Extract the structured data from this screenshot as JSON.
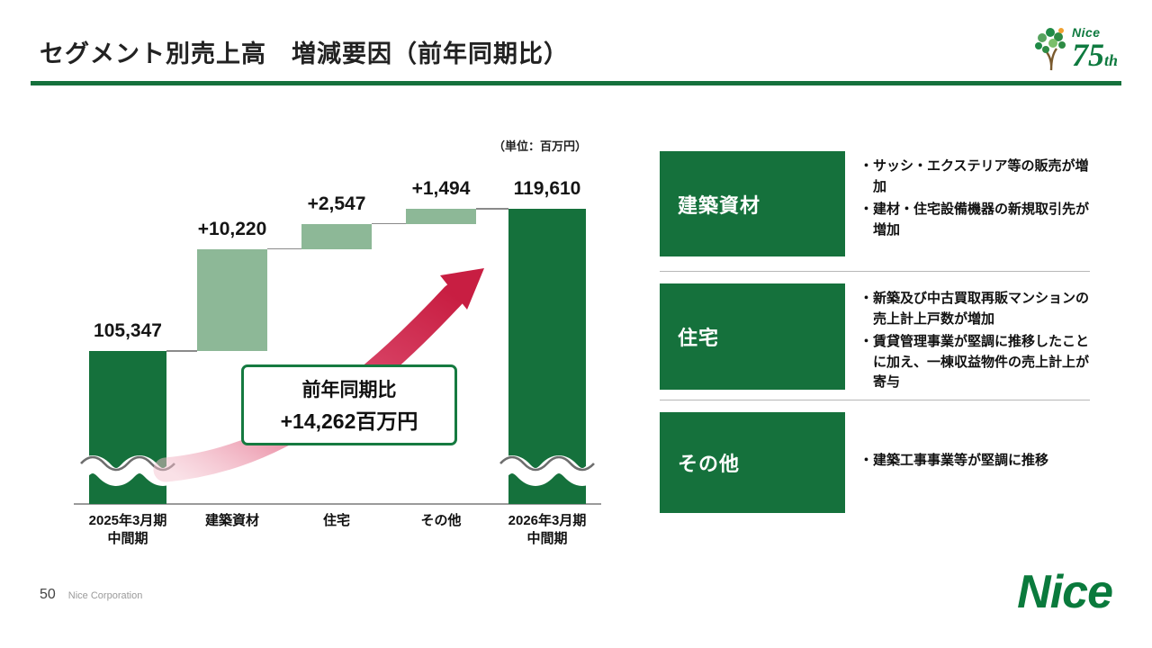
{
  "slide": {
    "title": "セグメント別売上高　増減要因（前年同期比）",
    "unit_label": "（単位：百万円）",
    "page_number": "50",
    "company": "Nice Corporation",
    "footer_logo": "Nice",
    "anniversary_logo": {
      "brand": "Nice",
      "number": "75",
      "suffix": "th"
    }
  },
  "chart_data": {
    "type": "waterfall",
    "title": "セグメント別売上高 増減要因（前年同期比）",
    "unit": "百万円",
    "unit_label": "（単位：百万円）",
    "categories": [
      "2025年3月期\n中間期",
      "建築資材",
      "住宅",
      "その他",
      "2026年3月期\n中間期"
    ],
    "roles": [
      "total",
      "delta",
      "delta",
      "delta",
      "total"
    ],
    "values": [
      105347,
      10220,
      2547,
      1494,
      119610
    ],
    "bar_labels": [
      "105,347",
      "+10,220",
      "+2,547",
      "+1,494",
      "119,610"
    ],
    "total_change_label": {
      "line1": "前年同期比",
      "line2": "+14,262百万円"
    },
    "axis_break": true,
    "legend": "none",
    "colors": {
      "total_bar": "#15713c",
      "delta_bar": "#8db897",
      "arrow": "#c81e42",
      "callout_border": "#157a40"
    }
  },
  "panel": {
    "sections": [
      {
        "label": "建築資材",
        "bullets": [
          "・サッシ・エクステリア等の販売が増加",
          "・建材・住宅設備機器の新規取引先が増加"
        ]
      },
      {
        "label": "住宅",
        "bullets": [
          "・新築及び中古買取再販マンションの売上計上戸数が増加",
          "・賃貸管理事業が堅調に推移したことに加え、一棟収益物件の売上計上が寄与"
        ]
      },
      {
        "label": "その他",
        "bullets": [
          "・建築工事事業等が堅調に推移"
        ]
      }
    ]
  }
}
